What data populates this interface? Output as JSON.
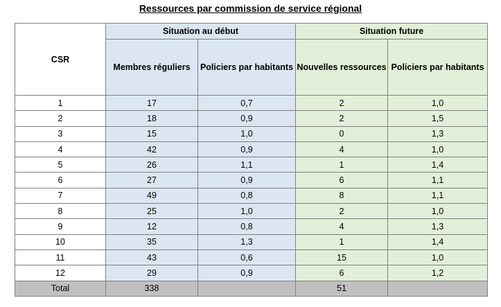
{
  "title": "Ressources par commission de service régional",
  "headers": {
    "csr": "CSR",
    "group_start": "Situation au début",
    "group_future": "Situation future",
    "members": "Membres réguliers",
    "police_start": "Policiers par habitants",
    "new_resources": "Nouvelles ressources",
    "police_future": "Policiers par habitants"
  },
  "rows": [
    {
      "csr": "1",
      "members": "17",
      "police_start": "0,7",
      "new_resources": "2",
      "police_future": "1,0"
    },
    {
      "csr": "2",
      "members": "18",
      "police_start": "0,9",
      "new_resources": "2",
      "police_future": "1,5"
    },
    {
      "csr": "3",
      "members": "15",
      "police_start": "1,0",
      "new_resources": "0",
      "police_future": "1,3"
    },
    {
      "csr": "4",
      "members": "42",
      "police_start": "0,9",
      "new_resources": "4",
      "police_future": "1,0"
    },
    {
      "csr": "5",
      "members": "26",
      "police_start": "1,1",
      "new_resources": "1",
      "police_future": "1,4"
    },
    {
      "csr": "6",
      "members": "27",
      "police_start": "0,9",
      "new_resources": "6",
      "police_future": "1,1"
    },
    {
      "csr": "7",
      "members": "49",
      "police_start": "0,8",
      "new_resources": "8",
      "police_future": "1,1"
    },
    {
      "csr": "8",
      "members": "25",
      "police_start": "1,0",
      "new_resources": "2",
      "police_future": "1,0"
    },
    {
      "csr": "9",
      "members": "12",
      "police_start": "0,8",
      "new_resources": "4",
      "police_future": "1,3"
    },
    {
      "csr": "10",
      "members": "35",
      "police_start": "1,3",
      "new_resources": "1",
      "police_future": "1,4"
    },
    {
      "csr": "11",
      "members": "43",
      "police_start": "0,6",
      "new_resources": "15",
      "police_future": "1,0"
    },
    {
      "csr": "12",
      "members": "29",
      "police_start": "0,9",
      "new_resources": "6",
      "police_future": "1,2"
    }
  ],
  "total": {
    "label": "Total",
    "members": "338",
    "police_start": "",
    "new_resources": "51",
    "police_future": ""
  }
}
